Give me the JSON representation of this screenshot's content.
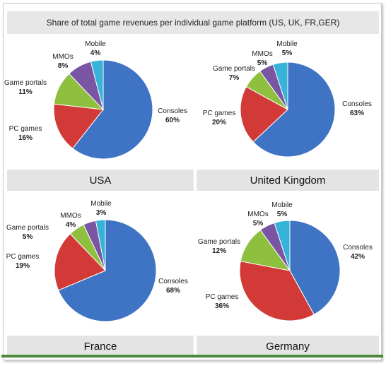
{
  "title": "Share of total game revenues per individual game platform  (US, UK, FR,GER)",
  "colors": {
    "Consoles": "#3f73c4",
    "PC games": "#d13a37",
    "Game portals": "#8fbf3f",
    "MMOs": "#7a55a3",
    "Mobile": "#38b3d8"
  },
  "chart_data": [
    {
      "type": "pie",
      "name": "USA",
      "categories": [
        "Consoles",
        "PC games",
        "Game portals",
        "MMOs",
        "Mobile"
      ],
      "values": [
        60,
        16,
        11,
        8,
        4
      ],
      "value_labels": [
        "60%",
        "16%",
        "11%",
        "8%",
        "4%"
      ]
    },
    {
      "type": "pie",
      "name": "United Kingdom",
      "categories": [
        "Consoles",
        "PC games",
        "Game portals",
        "MMOs",
        "Mobile"
      ],
      "values": [
        63,
        20,
        7,
        5,
        5
      ],
      "value_labels": [
        "63%",
        "20%",
        "7%",
        "5%",
        "5%"
      ]
    },
    {
      "type": "pie",
      "name": "France",
      "categories": [
        "Consoles",
        "PC games",
        "Game portals",
        "MMOs",
        "Mobile"
      ],
      "values": [
        68,
        19,
        5,
        4,
        3
      ],
      "value_labels": [
        "68%",
        "19%",
        "5%",
        "4%",
        "3%"
      ]
    },
    {
      "type": "pie",
      "name": "Germany",
      "categories": [
        "Consoles",
        "PC games",
        "Game portals",
        "MMOs",
        "Mobile"
      ],
      "values": [
        42,
        36,
        12,
        5,
        5
      ],
      "value_labels": [
        "42%",
        "36%",
        "12%",
        "5%",
        "5%"
      ]
    }
  ]
}
